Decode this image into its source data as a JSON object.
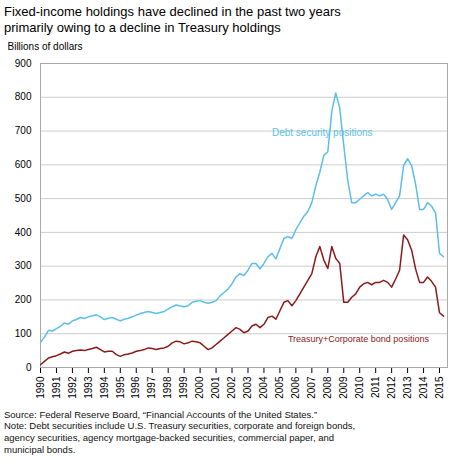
{
  "chart_data": {
    "type": "line",
    "title": "Fixed-income holdings have declined in the past two years\nprimarily owing to a decline in Treasury holdings",
    "y_label": "Billions of dollars",
    "caption": "Source: Federal Reserve Board, “Financial Accounts of the United States.”\nNote: Debt securities include U.S. Treasury securities, corporate and foreign bonds,\nagency securities, agency mortgage-backed securities, commercial paper, and\nmunicipal bonds.",
    "x": [
      1990.0,
      1990.25,
      1990.5,
      1990.75,
      1991.0,
      1991.25,
      1991.5,
      1991.75,
      1992.0,
      1992.25,
      1992.5,
      1992.75,
      1993.0,
      1993.25,
      1993.5,
      1993.75,
      1994.0,
      1994.25,
      1994.5,
      1994.75,
      1995.0,
      1995.25,
      1995.5,
      1995.75,
      1996.0,
      1996.25,
      1996.5,
      1996.75,
      1997.0,
      1997.25,
      1997.5,
      1997.75,
      1998.0,
      1998.25,
      1998.5,
      1998.75,
      1999.0,
      1999.25,
      1999.5,
      1999.75,
      2000.0,
      2000.25,
      2000.5,
      2000.75,
      2001.0,
      2001.25,
      2001.5,
      2001.75,
      2002.0,
      2002.25,
      2002.5,
      2002.75,
      2003.0,
      2003.25,
      2003.5,
      2003.75,
      2004.0,
      2004.25,
      2004.5,
      2004.75,
      2005.0,
      2005.25,
      2005.5,
      2005.75,
      2006.0,
      2006.25,
      2006.5,
      2006.75,
      2007.0,
      2007.25,
      2007.5,
      2007.75,
      2008.0,
      2008.25,
      2008.5,
      2008.75,
      2009.0,
      2009.25,
      2009.5,
      2009.75,
      2010.0,
      2010.25,
      2010.5,
      2010.75,
      2011.0,
      2011.25,
      2011.5,
      2011.75,
      2012.0,
      2012.25,
      2012.5,
      2012.75,
      2013.0,
      2013.25,
      2013.5,
      2013.75,
      2014.0,
      2014.25,
      2014.5,
      2014.75,
      2015.0,
      2015.25
    ],
    "series": [
      {
        "name": "Debt security positions",
        "color": "#5BBFEA",
        "values": [
          75,
          90,
          110,
          108,
          115,
          122,
          132,
          128,
          138,
          142,
          148,
          145,
          150,
          153,
          156,
          150,
          142,
          146,
          148,
          143,
          138,
          143,
          146,
          150,
          155,
          160,
          163,
          166,
          163,
          160,
          163,
          166,
          173,
          180,
          185,
          182,
          180,
          183,
          193,
          196,
          198,
          193,
          190,
          193,
          198,
          212,
          222,
          232,
          248,
          268,
          278,
          272,
          288,
          308,
          308,
          292,
          308,
          328,
          338,
          322,
          352,
          382,
          388,
          382,
          408,
          428,
          448,
          462,
          488,
          538,
          578,
          628,
          638,
          758,
          813,
          768,
          658,
          553,
          488,
          488,
          498,
          508,
          518,
          508,
          513,
          508,
          513,
          498,
          468,
          488,
          508,
          598,
          618,
          598,
          543,
          468,
          468,
          488,
          478,
          458,
          338,
          328
        ]
      },
      {
        "name": "Treasury+Corporate bond positions",
        "color": "#8B1A1A",
        "values": [
          8,
          18,
          28,
          32,
          35,
          40,
          46,
          42,
          48,
          50,
          52,
          50,
          53,
          56,
          60,
          53,
          46,
          48,
          48,
          38,
          33,
          38,
          40,
          43,
          48,
          50,
          53,
          58,
          56,
          53,
          56,
          58,
          63,
          73,
          78,
          76,
          70,
          73,
          78,
          76,
          73,
          63,
          53,
          58,
          68,
          78,
          88,
          98,
          108,
          118,
          113,
          103,
          108,
          123,
          128,
          118,
          128,
          148,
          152,
          143,
          168,
          193,
          198,
          183,
          198,
          218,
          238,
          258,
          278,
          328,
          358,
          318,
          293,
          358,
          323,
          308,
          193,
          193,
          208,
          218,
          238,
          248,
          252,
          245,
          252,
          252,
          258,
          252,
          238,
          262,
          288,
          392,
          378,
          348,
          292,
          252,
          252,
          268,
          255,
          238,
          162,
          152
        ]
      }
    ],
    "annotations": [
      {
        "text": "Debt security positions",
        "x": 2004.5,
        "y": 680,
        "color": "#5BBFEA"
      },
      {
        "text": "Treasury+Corporate bond positions",
        "x": 2005.5,
        "y": 100,
        "color": "#8B1A1A"
      }
    ],
    "xlim": [
      1990,
      2015.5
    ],
    "xticks": [
      1990,
      1991,
      1992,
      1993,
      1994,
      1995,
      1996,
      1997,
      1998,
      1999,
      2000,
      2001,
      2002,
      2003,
      2004,
      2005,
      2006,
      2007,
      2008,
      2009,
      2010,
      2011,
      2012,
      2013,
      2014,
      2015
    ],
    "ylim": [
      0,
      900
    ],
    "yticks": [
      0,
      100,
      200,
      300,
      400,
      500,
      600,
      700,
      800,
      900
    ],
    "grid": true
  }
}
